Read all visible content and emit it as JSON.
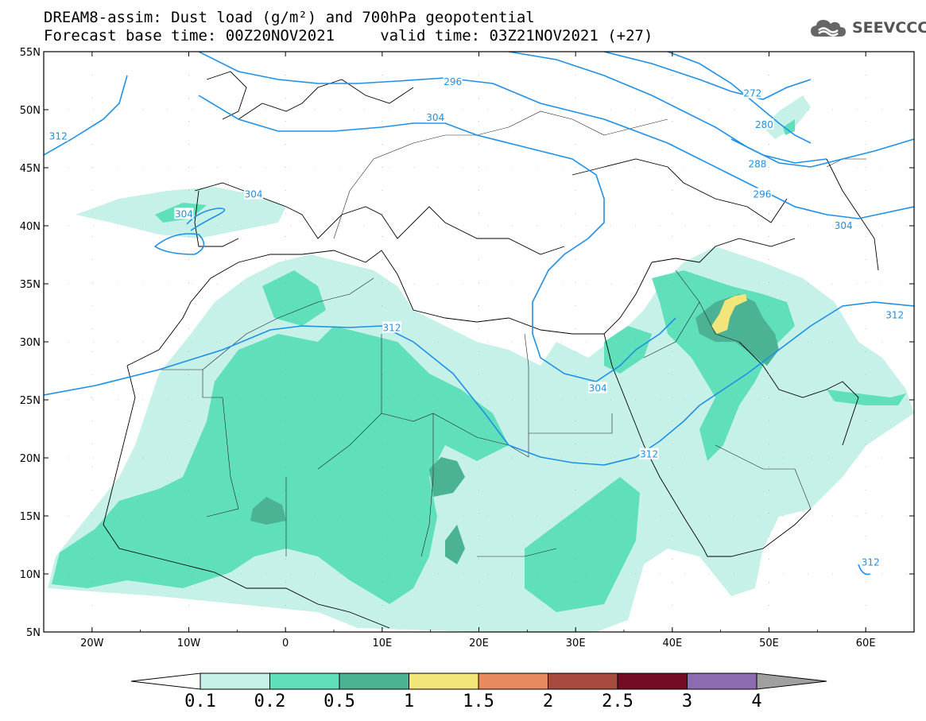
{
  "header": {
    "title_line1": "DREAM8-assim: Dust load (g/m²) and 700hPa geopotential",
    "title_line2": "Forecast base time: 00Z20NOV2021     valid time: 03Z21NOV2021 (+27)"
  },
  "logo": {
    "text": "SEEVCCC",
    "icon": "cloud-icon",
    "color": "#555555"
  },
  "map": {
    "lon_range": [
      -25,
      65
    ],
    "lat_range": [
      5,
      55
    ],
    "lat_labels": [
      "55N",
      "50N",
      "45N",
      "40N",
      "35N",
      "30N",
      "25N",
      "20N",
      "15N",
      "10N",
      "5N"
    ],
    "lon_labels": [
      "20W",
      "10W",
      "0",
      "10E",
      "20E",
      "30E",
      "40E",
      "50E",
      "60E"
    ],
    "contour_color": "#1e90e6",
    "contour_labels": [
      {
        "text": "312",
        "lon": -23.5,
        "lat": 47.7
      },
      {
        "text": "296",
        "lon": 17.3,
        "lat": 52.4
      },
      {
        "text": "304",
        "lon": 15.5,
        "lat": 49.3
      },
      {
        "text": "304",
        "lon": -10.5,
        "lat": 41.0
      },
      {
        "text": "304",
        "lon": -3.3,
        "lat": 42.7
      },
      {
        "text": "272",
        "lon": 48.3,
        "lat": 51.4
      },
      {
        "text": "280",
        "lon": 49.5,
        "lat": 48.7
      },
      {
        "text": "288",
        "lon": 48.8,
        "lat": 45.3
      },
      {
        "text": "296",
        "lon": 49.3,
        "lat": 42.7
      },
      {
        "text": "304",
        "lon": 57.7,
        "lat": 40.0
      },
      {
        "text": "312",
        "lon": 11.0,
        "lat": 31.2
      },
      {
        "text": "304",
        "lon": 32.3,
        "lat": 26.0
      },
      {
        "text": "312",
        "lon": 37.6,
        "lat": 20.3
      },
      {
        "text": "312",
        "lon": 63.0,
        "lat": 32.3
      },
      {
        "text": "312",
        "lon": 60.5,
        "lat": 11.0
      }
    ]
  },
  "colorbar": {
    "labels": [
      "0.1",
      "0.2",
      "0.5",
      "1",
      "1.5",
      "2",
      "2.5",
      "3",
      "4"
    ],
    "colors": [
      "#c6f1e8",
      "#5fe0bb",
      "#4bb394",
      "#f2e57a",
      "#e88a60",
      "#a84a40",
      "#720d24",
      "#8c6bb0"
    ],
    "low_color": "#ffffff",
    "high_color": "#a0a0a0"
  },
  "dust_colors": {
    "c1": "#c6f1e8",
    "c2": "#5fe0bb",
    "c3": "#4bb394",
    "c4": "#f2e57a"
  }
}
